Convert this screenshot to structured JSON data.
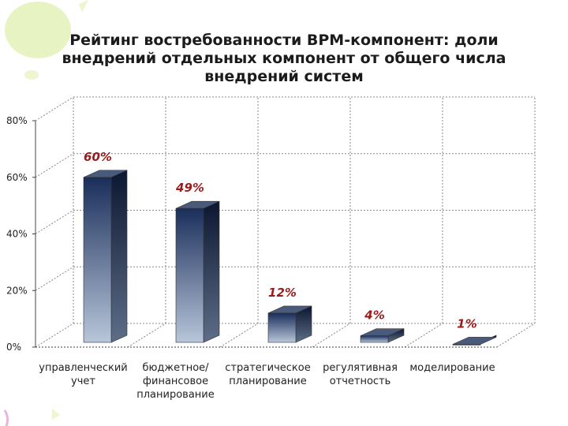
{
  "chart_data": {
    "type": "bar",
    "title_lines": [
      "Рейтинг востребованности BPM-компонент: доли",
      "внедрений отдельных компонент от общего числа",
      "внедрений систем"
    ],
    "categories": [
      [
        "управленческий",
        "учет"
      ],
      [
        "бюджетное/",
        "финансовое",
        "планирование"
      ],
      [
        "стратегическое",
        "планирование"
      ],
      [
        "регулятивная",
        "отчетность"
      ],
      [
        "моделирование"
      ]
    ],
    "values": [
      60,
      49,
      12,
      4,
      1
    ],
    "value_labels": [
      "60%",
      "49%",
      "12%",
      "4%",
      "1%"
    ],
    "ylim": [
      0,
      80
    ],
    "yticks": [
      0,
      20,
      40,
      60,
      80
    ],
    "ytick_labels": [
      "0%",
      "20%",
      "40%",
      "60%",
      "80%"
    ],
    "grid": true,
    "colors": {
      "bar_top": "#1a2e5a",
      "bar_bottom": "#b8c6da",
      "label": "#9b1a1a"
    }
  }
}
